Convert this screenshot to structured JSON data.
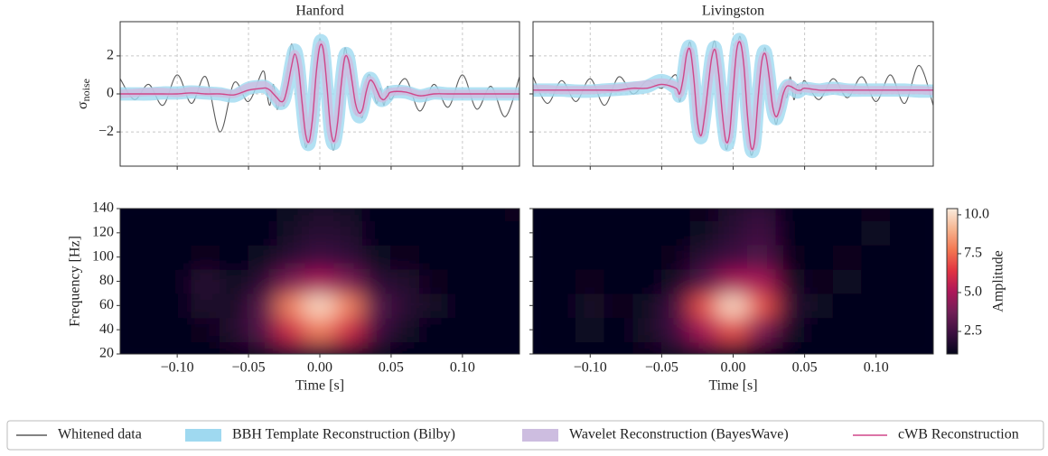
{
  "chart_data": [
    {
      "type": "line",
      "title": "Hanford",
      "ylabel": {
        "symbol": "σ",
        "subscript": "noise"
      },
      "xlim": [
        -0.14,
        0.14
      ],
      "xticks": [
        -0.1,
        -0.05,
        0,
        0.05,
        0.1
      ],
      "xtick_labels": false,
      "ylim": [
        -3.8,
        3.8
      ],
      "yticks": [
        {
          "value": -2,
          "label": "−2"
        },
        0,
        2
      ],
      "grid": true,
      "x": [
        -0.14,
        -0.13,
        -0.12,
        -0.11,
        -0.1,
        -0.09,
        -0.08,
        -0.07,
        -0.06,
        -0.05,
        -0.04,
        -0.0375,
        -0.035,
        -0.0325,
        -0.03,
        -0.0275,
        -0.025,
        -0.0225,
        -0.02,
        -0.0175,
        -0.015,
        -0.0125,
        -0.01,
        -0.0075,
        -0.005,
        -0.0025,
        0,
        0.0025,
        0.005,
        0.0075,
        0.01,
        0.0125,
        0.015,
        0.0175,
        0.02,
        0.0225,
        0.025,
        0.0275,
        0.03,
        0.0325,
        0.035,
        0.0375,
        0.04,
        0.0425,
        0.045,
        0.0475,
        0.05,
        0.06,
        0.07,
        0.08,
        0.09,
        0.1,
        0.11,
        0.12,
        0.13,
        0.14
      ],
      "series": [
        {
          "name": "Whitened data",
          "color": "#5a5a5a",
          "style": "line",
          "values": [
            0.8,
            -0.3,
            0.5,
            -0.6,
            1.0,
            -0.5,
            0.9,
            -2.0,
            0.6,
            -0.4,
            1.2,
            0.2,
            -0.6,
            0.5,
            -0.8,
            -0.2,
            -0.6,
            1.2,
            2.6,
            2.0,
            1.2,
            -1.0,
            -2.8,
            -2.0,
            -1.4,
            1.6,
            2.9,
            1.8,
            0.6,
            -2.2,
            -2.9,
            -1.0,
            0.4,
            2.4,
            1.6,
            0.9,
            -1.0,
            -0.9,
            -1.2,
            0.6,
            1.0,
            0.2,
            -0.5,
            0.3,
            -0.6,
            0.4,
            -0.3,
            0.8,
            -0.9,
            0.5,
            -0.7,
            1.0,
            -0.8,
            0.4,
            -1.2,
            0.9
          ]
        },
        {
          "name": "BBH Template Reconstruction (Bilby)",
          "color": "#9fd9f0",
          "style": "band",
          "spread": 0.35,
          "values": [
            0,
            0,
            0,
            0.05,
            0.05,
            0.1,
            0.05,
            0,
            -0.1,
            0.3,
            0.4,
            0.35,
            0.2,
            0,
            -0.3,
            -0.5,
            -0.3,
            0.5,
            1.6,
            2.3,
            1.5,
            -0.5,
            -2.2,
            -2.6,
            -1.2,
            1.2,
            2.7,
            2.4,
            0.3,
            -2.0,
            -2.6,
            -1.5,
            0.6,
            2.0,
            1.9,
            0.6,
            -0.7,
            -1.2,
            -0.8,
            0.2,
            0.8,
            0.6,
            0.1,
            -0.3,
            -0.3,
            -0.1,
            0.1,
            0.1,
            -0.1,
            0.05,
            0,
            0,
            0,
            0,
            0,
            0
          ]
        },
        {
          "name": "Wavelet Reconstruction (BayesWave)",
          "color": "#cdbde0",
          "style": "band",
          "spread": 0.22,
          "values": [
            0,
            0.05,
            0.1,
            0.1,
            0.05,
            0.15,
            0.1,
            0.05,
            0,
            0.35,
            0.45,
            0.4,
            0.2,
            -0.05,
            -0.3,
            -0.45,
            -0.2,
            0.6,
            1.5,
            2.1,
            1.4,
            -0.4,
            -2.0,
            -2.4,
            -1.1,
            1.1,
            2.5,
            2.2,
            0.3,
            -1.8,
            -2.4,
            -1.4,
            0.5,
            1.8,
            1.7,
            0.6,
            -0.6,
            -1.0,
            -0.7,
            0.2,
            0.7,
            0.5,
            0.1,
            -0.2,
            -0.2,
            0,
            0.1,
            0.15,
            -0.05,
            0.05,
            0,
            0,
            0,
            0,
            0,
            0
          ]
        },
        {
          "name": "cWB Reconstruction",
          "color": "#d0478a",
          "style": "line",
          "values": [
            0,
            0,
            0,
            0,
            0,
            0.05,
            0,
            0,
            -0.05,
            0.2,
            0.3,
            0.3,
            0.2,
            0,
            -0.2,
            -0.4,
            -0.3,
            0.4,
            1.4,
            2.1,
            1.4,
            -0.4,
            -2.1,
            -2.5,
            -1.2,
            1.1,
            2.5,
            2.3,
            0.4,
            -1.8,
            -2.5,
            -1.5,
            0.5,
            1.9,
            1.8,
            0.7,
            -0.5,
            -1.0,
            -0.8,
            0.1,
            0.7,
            0.6,
            0.2,
            -0.2,
            -0.3,
            -0.1,
            0.1,
            0.1,
            -0.1,
            0,
            0,
            0,
            0,
            0,
            0,
            0
          ]
        }
      ]
    },
    {
      "type": "line",
      "title": "Livingston",
      "xlim": [
        -0.14,
        0.14
      ],
      "xticks": [
        -0.1,
        -0.05,
        0,
        0.05,
        0.1
      ],
      "xtick_labels": false,
      "ylim": [
        -3.8,
        3.8
      ],
      "yticks": [
        -2,
        0,
        2
      ],
      "ytick_labels": false,
      "grid": true,
      "x": [
        -0.14,
        -0.13,
        -0.12,
        -0.11,
        -0.1,
        -0.09,
        -0.08,
        -0.07,
        -0.06,
        -0.05,
        -0.04,
        -0.0375,
        -0.035,
        -0.0325,
        -0.03,
        -0.0275,
        -0.025,
        -0.0225,
        -0.02,
        -0.0175,
        -0.015,
        -0.0125,
        -0.01,
        -0.0075,
        -0.005,
        -0.0025,
        0,
        0.0025,
        0.005,
        0.0075,
        0.01,
        0.0125,
        0.015,
        0.0175,
        0.02,
        0.0225,
        0.025,
        0.0275,
        0.03,
        0.0325,
        0.035,
        0.0375,
        0.04,
        0.0425,
        0.045,
        0.0475,
        0.05,
        0.06,
        0.07,
        0.08,
        0.09,
        0.1,
        0.11,
        0.12,
        0.13,
        0.14
      ],
      "series": [
        {
          "name": "Whitened data",
          "color": "#5a5a5a",
          "style": "line",
          "values": [
            0.9,
            -0.5,
            0.7,
            -0.4,
            0.8,
            -0.6,
            0.9,
            0.0,
            0.7,
            0.3,
            1.0,
            -0.4,
            0.6,
            2.0,
            2.7,
            1.0,
            -1.8,
            -2.2,
            -0.9,
            0.3,
            2.2,
            2.7,
            0.6,
            -1.0,
            -2.9,
            -2.0,
            0.5,
            2.2,
            3.0,
            1.2,
            -1.5,
            -3.2,
            -2.4,
            0.2,
            1.6,
            2.4,
            0.7,
            -0.5,
            -1.6,
            -0.6,
            0.4,
            -0.2,
            0.9,
            -0.3,
            0.5,
            0.0,
            0.7,
            -0.3,
            0.8,
            -0.2,
            0.9,
            -0.4,
            1.0,
            -0.5,
            1.5,
            -0.6
          ]
        },
        {
          "name": "BBH Template Reconstruction (Bilby)",
          "color": "#9fd9f0",
          "style": "band",
          "spread": 0.35,
          "values": [
            0.2,
            0.2,
            0.2,
            0.15,
            0.15,
            0.2,
            0.25,
            0.3,
            0.4,
            0.7,
            0.3,
            -0.1,
            0.9,
            2.2,
            2.4,
            0.8,
            -1.5,
            -2.3,
            -1.2,
            0.5,
            2.0,
            2.4,
            1.0,
            -1.2,
            -2.6,
            -2.2,
            0.2,
            2.4,
            2.8,
            1.5,
            -1.2,
            -2.9,
            -2.6,
            -0.2,
            1.8,
            2.2,
            1.0,
            -0.7,
            -1.3,
            -0.8,
            0,
            0.4,
            0.4,
            0.2,
            0.1,
            0.2,
            0.3,
            0.2,
            0.3,
            0.2,
            0.2,
            0.2,
            0.2,
            0.2,
            0.15,
            0.15
          ]
        },
        {
          "name": "Wavelet Reconstruction (BayesWave)",
          "color": "#cdbde0",
          "style": "band",
          "spread": 0.22,
          "values": [
            0.25,
            0.25,
            0.2,
            0.2,
            0.2,
            0.25,
            0.3,
            0.4,
            0.5,
            0.6,
            0.4,
            0,
            0.8,
            2.0,
            2.2,
            0.8,
            -1.3,
            -2.1,
            -1.1,
            0.5,
            1.8,
            2.2,
            0.9,
            -1.1,
            -2.4,
            -2.0,
            0.2,
            2.2,
            2.6,
            1.4,
            -1.1,
            -2.7,
            -2.4,
            -0.2,
            1.6,
            2.0,
            0.9,
            -0.6,
            -1.1,
            -0.7,
            0,
            0.4,
            0.5,
            0.3,
            0.2,
            0.3,
            0.3,
            0.25,
            0.3,
            0.25,
            0.2,
            0.2,
            0.2,
            0.2,
            0.2,
            0.15
          ]
        },
        {
          "name": "cWB Reconstruction",
          "color": "#d0478a",
          "style": "line",
          "values": [
            0.2,
            0.2,
            0.2,
            0.2,
            0.2,
            0.2,
            0.2,
            0.3,
            0.3,
            0.5,
            0.3,
            0,
            0.8,
            2.1,
            2.3,
            0.8,
            -1.4,
            -2.2,
            -1.2,
            0.4,
            1.9,
            2.3,
            1.0,
            -1.1,
            -2.5,
            -2.1,
            0.2,
            2.3,
            2.7,
            1.5,
            -1.1,
            -2.8,
            -2.5,
            -0.2,
            1.7,
            2.1,
            1.0,
            -0.6,
            -1.2,
            -0.8,
            0,
            0.4,
            0.4,
            0.3,
            0.2,
            0.2,
            0.3,
            0.2,
            0.2,
            0.2,
            0.2,
            0.2,
            0.2,
            0.2,
            0.2,
            0.2
          ]
        }
      ]
    },
    {
      "type": "heatmap",
      "xlabel": "Time [s]",
      "ylabel": "Frequency [Hz]",
      "xlim": [
        -0.14,
        0.14
      ],
      "xticks": [
        {
          "value": -0.1,
          "label": "−0.10"
        },
        {
          "value": -0.05,
          "label": "−0.05"
        },
        {
          "value": 0,
          "label": "0.00"
        },
        {
          "value": 0.05,
          "label": "0.05"
        },
        {
          "value": 0.1,
          "label": "0.10"
        }
      ],
      "ylim": [
        20,
        140
      ],
      "yticks": [
        20,
        40,
        60,
        80,
        100,
        120,
        140
      ],
      "zlim": [
        1.05,
        10.4
      ],
      "colormap": [
        "#03051a",
        "#3b0f40",
        "#701f57",
        "#ad1759",
        "#e13342",
        "#f37651",
        "#f6b48f",
        "#faebdd"
      ],
      "x": [
        -0.14,
        -0.12,
        -0.1,
        -0.08,
        -0.06,
        -0.04,
        -0.02,
        0,
        0.02,
        0.04,
        0.06,
        0.08,
        0.1,
        0.12,
        0.14
      ],
      "y": [
        20,
        40,
        60,
        80,
        100,
        120,
        140
      ],
      "z": [
        [
          1,
          1,
          1,
          1,
          1.2,
          1.5,
          2,
          2,
          1.8,
          1.3,
          1,
          1,
          1,
          1,
          1
        ],
        [
          1,
          1,
          1,
          1.2,
          1.8,
          3,
          6,
          8,
          6,
          2.5,
          1.5,
          1,
          1,
          1,
          1
        ],
        [
          1,
          1,
          1,
          1.8,
          1.5,
          3,
          8,
          10,
          8,
          3,
          2,
          1.5,
          1,
          1,
          1
        ],
        [
          1,
          1,
          1,
          2,
          1.3,
          2,
          4,
          5,
          4,
          2,
          1.8,
          1.2,
          1,
          1,
          1
        ],
        [
          1,
          1,
          1,
          1.2,
          1,
          1.3,
          2,
          2.5,
          2.2,
          1.3,
          1.2,
          1,
          1,
          1,
          1
        ],
        [
          1,
          1,
          1,
          1,
          1,
          1,
          1.5,
          2,
          1.8,
          1,
          1,
          1,
          1,
          1,
          1
        ],
        [
          1,
          1,
          1,
          1,
          1,
          1,
          1.3,
          1.6,
          1.5,
          1,
          1,
          1,
          1,
          1,
          1.2
        ]
      ]
    },
    {
      "type": "heatmap",
      "xlabel": "Time [s]",
      "xlim": [
        -0.14,
        0.14
      ],
      "xticks": [
        {
          "value": -0.1,
          "label": "−0.10"
        },
        {
          "value": -0.05,
          "label": "−0.05"
        },
        {
          "value": 0,
          "label": "0.00"
        },
        {
          "value": 0.05,
          "label": "0.05"
        },
        {
          "value": 0.1,
          "label": "0.10"
        }
      ],
      "ylim": [
        20,
        140
      ],
      "yticks": [
        20,
        40,
        60,
        80,
        100,
        120,
        140
      ],
      "ytick_labels": false,
      "zlim": [
        1.05,
        10.4
      ],
      "colormap": [
        "#03051a",
        "#3b0f40",
        "#701f57",
        "#ad1759",
        "#e13342",
        "#f37651",
        "#f6b48f",
        "#faebdd"
      ],
      "x": [
        -0.14,
        -0.12,
        -0.1,
        -0.08,
        -0.06,
        -0.04,
        -0.02,
        0,
        0.02,
        0.04,
        0.06,
        0.08,
        0.1,
        0.12,
        0.14
      ],
      "y": [
        20,
        40,
        60,
        80,
        100,
        120,
        140
      ],
      "z": [
        [
          1,
          1,
          1,
          1,
          1.2,
          1.5,
          1.8,
          1.6,
          1.2,
          1,
          1,
          1,
          1,
          1,
          1
        ],
        [
          1,
          1,
          1.3,
          1,
          1.5,
          2.5,
          5,
          7,
          4,
          1.5,
          1,
          1,
          1,
          1,
          1
        ],
        [
          1,
          1,
          1.5,
          1.2,
          1.3,
          2.5,
          7,
          10,
          7,
          2,
          1.3,
          1,
          1,
          1,
          1
        ],
        [
          1,
          1,
          1.2,
          1,
          1,
          1.5,
          3,
          5,
          5,
          1.5,
          1.2,
          1.3,
          1,
          1,
          1
        ],
        [
          1,
          1,
          1,
          1,
          1,
          1.2,
          2,
          2.5,
          3,
          1.2,
          1.1,
          1.2,
          1,
          1,
          1
        ],
        [
          1,
          1,
          1,
          1,
          1,
          1,
          1.3,
          2,
          2.5,
          1,
          1,
          1,
          1.3,
          1,
          1
        ],
        [
          1,
          1,
          1,
          1,
          1,
          1,
          1.2,
          1.8,
          2.2,
          1,
          1,
          1,
          1.2,
          1,
          1
        ]
      ],
      "colorbar": {
        "label": "Amplitude",
        "ticks": [
          2.5,
          {
            "value": 5,
            "label": "5.0"
          },
          7.5,
          {
            "value": 10,
            "label": "10.0"
          }
        ]
      }
    }
  ]
}
